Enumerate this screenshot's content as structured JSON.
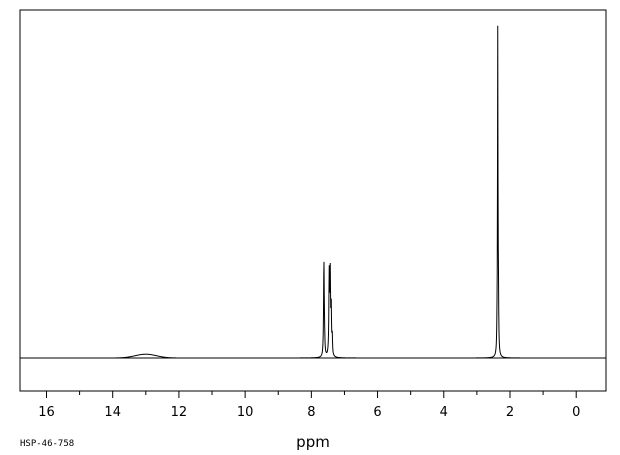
{
  "chart_data": {
    "type": "line",
    "title": "",
    "xlabel": "ppm",
    "ylabel": "",
    "sample_code": "HSP-46-758",
    "x_reversed": true,
    "xlim": [
      16.8,
      -0.9
    ],
    "ylim": [
      0,
      1
    ],
    "x_ticks_major": [
      16,
      14,
      12,
      10,
      8,
      6,
      4,
      2,
      0
    ],
    "x_tick_labels": [
      "16",
      "14",
      "12",
      "10",
      "8",
      "6",
      "4",
      "2",
      "0"
    ],
    "x_ticks_minor": [
      15,
      13,
      11,
      9,
      7,
      5,
      3,
      1
    ],
    "grid": false,
    "series": [
      {
        "peaks": [
          {
            "ppm": 13.0,
            "height": 0.012,
            "width": 0.45,
            "shape": "broad"
          },
          {
            "ppm": 7.62,
            "height": 0.3,
            "width": 0.012
          },
          {
            "ppm": 7.6,
            "height": 0.04,
            "width": 0.01
          },
          {
            "ppm": 7.46,
            "height": 0.25,
            "width": 0.012
          },
          {
            "ppm": 7.43,
            "height": 0.25,
            "width": 0.012
          },
          {
            "ppm": 7.4,
            "height": 0.14,
            "width": 0.01
          },
          {
            "ppm": 7.37,
            "height": 0.06,
            "width": 0.01
          },
          {
            "ppm": 2.37,
            "height": 1.0,
            "width": 0.008
          },
          {
            "ppm": 2.35,
            "height": 0.17,
            "width": 0.01
          },
          {
            "ppm": 2.39,
            "height": 0.06,
            "width": 0.01
          }
        ]
      }
    ]
  }
}
